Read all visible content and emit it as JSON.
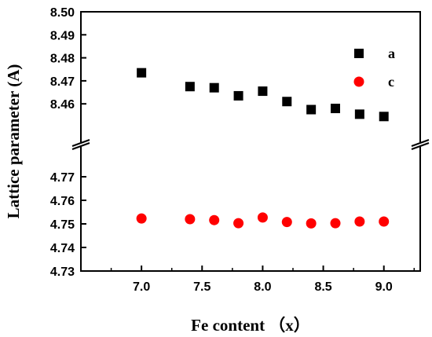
{
  "chart_data": {
    "type": "scatter",
    "xlabel": "Fe content （x）",
    "ylabel": "Lattice parameter (A)",
    "xlim": [
      6.5,
      9.3
    ],
    "ylim_upper": [
      8.443,
      8.5
    ],
    "ylim_lower": [
      4.73,
      4.783
    ],
    "axis_break": "y",
    "x_ticks": [
      "7.0",
      "7.5",
      "8.0",
      "8.5",
      "9.0"
    ],
    "y_ticks_upper": [
      "8.46",
      "8.47",
      "8.48",
      "8.49",
      "8.50"
    ],
    "y_ticks_lower": [
      "4.73",
      "4.74",
      "4.75",
      "4.76",
      "4.77"
    ],
    "legend_position": "top-right",
    "series": [
      {
        "name": "a",
        "marker": "square",
        "color": "#000000",
        "axis": "upper",
        "points": [
          [
            7.0,
            8.4735
          ],
          [
            7.4,
            8.4675
          ],
          [
            7.6,
            8.467
          ],
          [
            7.8,
            8.4635
          ],
          [
            8.0,
            8.4655
          ],
          [
            8.2,
            8.461
          ],
          [
            8.4,
            8.4575
          ],
          [
            8.6,
            8.458
          ],
          [
            8.8,
            8.4555
          ],
          [
            9.0,
            8.4545
          ]
        ]
      },
      {
        "name": "c",
        "marker": "circle",
        "color": "#ff0000",
        "axis": "lower",
        "points": [
          [
            7.0,
            4.7523
          ],
          [
            7.4,
            4.752
          ],
          [
            7.6,
            4.7516
          ],
          [
            7.8,
            4.7503
          ],
          [
            8.0,
            4.7527
          ],
          [
            8.2,
            4.7508
          ],
          [
            8.4,
            4.7502
          ],
          [
            8.6,
            4.7503
          ],
          [
            8.8,
            4.751
          ],
          [
            9.0,
            4.751
          ]
        ]
      }
    ]
  }
}
